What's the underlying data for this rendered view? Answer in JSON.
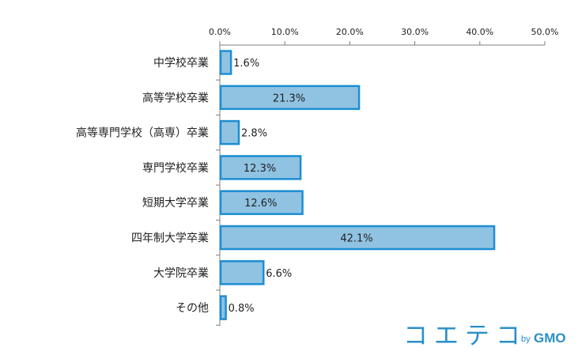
{
  "chart_data": {
    "type": "bar",
    "orientation": "horizontal",
    "categories": [
      "中学校卒業",
      "高等学校卒業",
      "高等専門学校（高専）卒業",
      "専門学校卒業",
      "短期大学卒業",
      "四年制大学卒業",
      "大学院卒業",
      "その他"
    ],
    "values": [
      1.6,
      21.3,
      2.8,
      12.3,
      12.6,
      42.1,
      6.6,
      0.8
    ],
    "value_labels": [
      "1.6%",
      "21.3%",
      "2.8%",
      "12.3%",
      "12.6%",
      "42.1%",
      "6.6%",
      "0.8%"
    ],
    "x_ticks": [
      0,
      10,
      20,
      30,
      40,
      50
    ],
    "x_tick_labels": [
      "0.0%",
      "10.0%",
      "20.0%",
      "30.0%",
      "40.0%",
      "50.0%"
    ],
    "xlim": [
      0,
      50
    ],
    "x_axis_position": "top",
    "grid": false,
    "legend": "none",
    "colors": {
      "bar_fill": "#90c2e2",
      "bar_stroke": "#1c8ed2",
      "axis": "#7f7f7f",
      "text": "#222222"
    }
  },
  "brand": {
    "main": "コエテコ",
    "by": "by",
    "gmo": "GMO",
    "color": "#2a8fc8"
  }
}
